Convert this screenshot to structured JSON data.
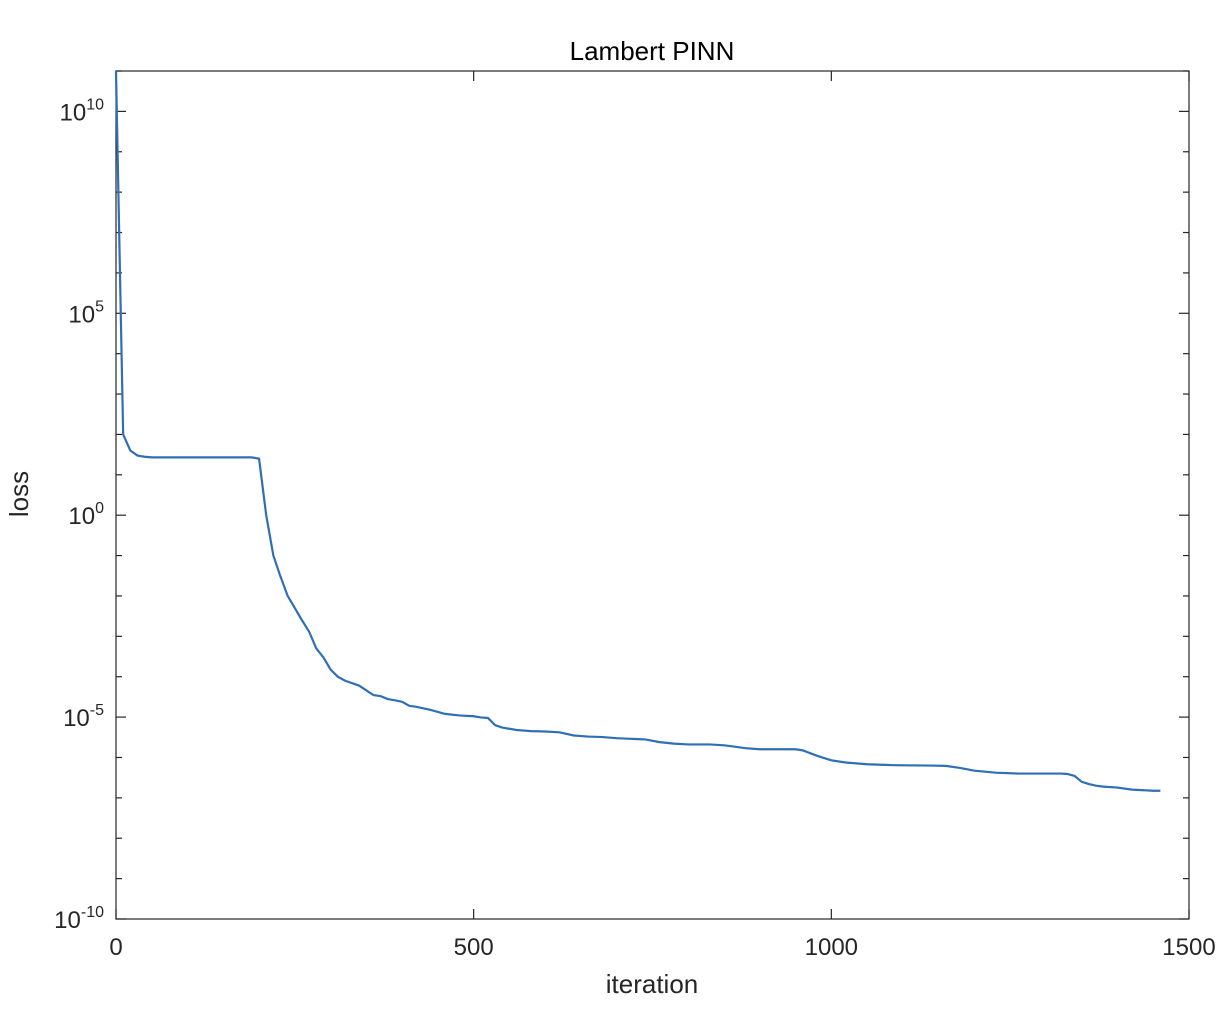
{
  "chart_data": {
    "type": "line",
    "title": "Lambert PINN",
    "xlabel": "iteration",
    "ylabel": "loss",
    "xlim": [
      0,
      1500
    ],
    "ylim": [
      1e-10,
      100000000000.0
    ],
    "yscale": "log",
    "grid": false,
    "box": true,
    "line_color": "#2f6fb5",
    "xticks": [
      0,
      500,
      1000,
      1500
    ],
    "xtick_labels": [
      "0",
      "500",
      "1000",
      "1500"
    ],
    "yticks": [
      {
        "value": 1e-10,
        "base": "10",
        "exp": "-10"
      },
      {
        "value": 1e-05,
        "base": "10",
        "exp": "-5"
      },
      {
        "value": 1,
        "base": "10",
        "exp": "0"
      },
      {
        "value": 100000.0,
        "base": "10",
        "exp": "5"
      },
      {
        "value": 10000000000.0,
        "base": "10",
        "exp": "10"
      }
    ],
    "series": [
      {
        "x": [
          0,
          10,
          20,
          30,
          40,
          50,
          100,
          150,
          190,
          200,
          210,
          220,
          230,
          240,
          250,
          260,
          270,
          280,
          290,
          300,
          310,
          320,
          340,
          360,
          370,
          380,
          390,
          400,
          410,
          420,
          440,
          460,
          480,
          500,
          510,
          520,
          530,
          540,
          560,
          580,
          600,
          620,
          640,
          660,
          680,
          700,
          720,
          740,
          760,
          780,
          800,
          830,
          850,
          860,
          880,
          900,
          920,
          950,
          960,
          980,
          1000,
          1020,
          1050,
          1080,
          1100,
          1140,
          1160,
          1180,
          1200,
          1230,
          1260,
          1290,
          1320,
          1330,
          1340,
          1350,
          1360,
          1370,
          1380,
          1400,
          1420,
          1450,
          1460
        ],
        "y": [
          100000000000.0,
          100,
          40,
          30,
          28,
          27,
          27,
          27,
          27,
          25,
          1,
          0.1,
          0.03,
          0.01,
          0.005,
          0.0025,
          0.0013,
          0.0005,
          0.0003,
          0.00015,
          0.0001,
          8e-05,
          6e-05,
          3.5e-05,
          3.3e-05,
          2.8e-05,
          2.6e-05,
          2.4e-05,
          1.9e-05,
          1.8e-05,
          1.5e-05,
          1.2e-05,
          1.1e-05,
          1.05e-05,
          9.8e-06,
          9.5e-06,
          6.3e-06,
          5.5e-06,
          4.8e-06,
          4.5e-06,
          4.4e-06,
          4.2e-06,
          3.5e-06,
          3.3e-06,
          3.2e-06,
          3e-06,
          2.9e-06,
          2.8e-06,
          2.4e-06,
          2.2e-06,
          2.1e-06,
          2.1e-06,
          2e-06,
          1.9e-06,
          1.7e-06,
          1.6e-06,
          1.6e-06,
          1.6e-06,
          1.5e-06,
          1.1e-06,
          8.5e-07,
          7.5e-07,
          6.8e-07,
          6.5e-07,
          6.4e-07,
          6.3e-07,
          6.2e-07,
          5.5e-07,
          4.7e-07,
          4.2e-07,
          4e-07,
          4e-07,
          4e-07,
          3.9e-07,
          3.5e-07,
          2.5e-07,
          2.2e-07,
          2e-07,
          1.9e-07,
          1.8e-07,
          1.6e-07,
          1.5e-07,
          1.5e-07
        ]
      }
    ]
  }
}
